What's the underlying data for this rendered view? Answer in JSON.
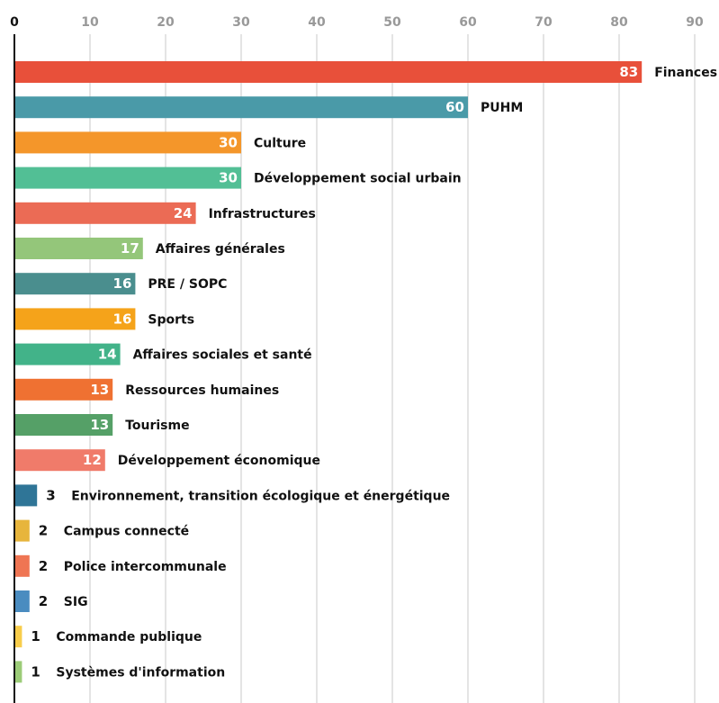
{
  "chart_data": {
    "type": "bar",
    "orientation": "horizontal",
    "title": "",
    "xlabel": "",
    "ylabel": "",
    "xlim": [
      0,
      90
    ],
    "x_ticks": [
      "0",
      "10",
      "20",
      "30",
      "40",
      "50",
      "60",
      "70",
      "80",
      "90"
    ],
    "grid": true,
    "legend": "none",
    "categories": [
      "Finances",
      "PUHM",
      "Culture",
      "Développement social urbain",
      "Infrastructures",
      "Affaires générales",
      "PRE / SOPC",
      "Sports",
      "Affaires sociales et santé",
      "Ressources humaines",
      "Tourisme",
      "Développement économique",
      "Environnement, transition écologique et énergétique",
      "Campus connecté",
      "Police intercommunale",
      "SIG",
      "Commande publique",
      "Systèmes d'information"
    ],
    "values": [
      83,
      60,
      30,
      30,
      24,
      17,
      16,
      16,
      14,
      13,
      13,
      12,
      3,
      2,
      2,
      2,
      1,
      1
    ],
    "colors": [
      "#e8503a",
      "#4a9aa8",
      "#f4962a",
      "#52bf95",
      "#eb6b55",
      "#94c67a",
      "#4a8e8e",
      "#f5a31a",
      "#42b389",
      "#ef7132",
      "#55a067",
      "#f07b6a",
      "#2f7597",
      "#e7b53c",
      "#ef7553",
      "#4a8cc0",
      "#f8cd4b",
      "#9ccc78"
    ]
  }
}
